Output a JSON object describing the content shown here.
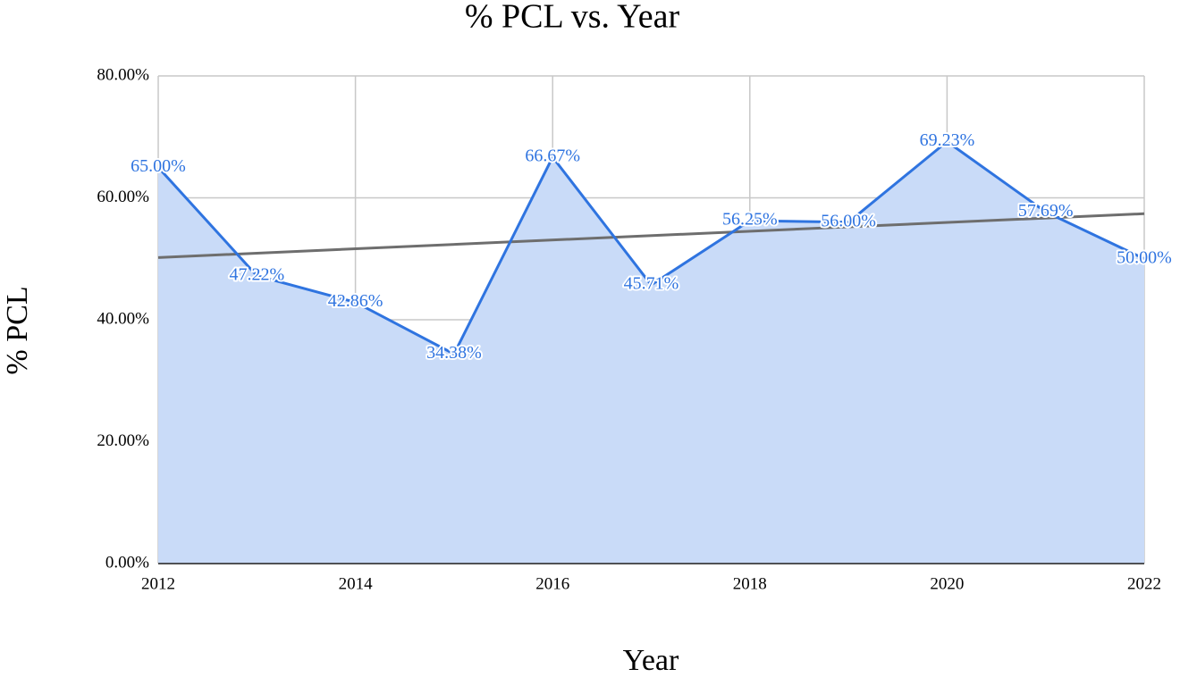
{
  "chart_data": {
    "type": "area",
    "title": "% PCL vs. Year",
    "x_label": "Year",
    "y_label": "% PCL",
    "x": [
      2012,
      2013,
      2014,
      2015,
      2016,
      2017,
      2018,
      2019,
      2020,
      2021,
      2022
    ],
    "values": [
      65.0,
      47.22,
      42.86,
      34.38,
      66.67,
      45.71,
      56.25,
      56.0,
      69.23,
      57.69,
      50.0
    ],
    "value_labels": [
      "65.00%",
      "47.22%",
      "42.86%",
      "34.38%",
      "66.67%",
      "45.71%",
      "56.25%",
      "56.00%",
      "69.23%",
      "57.69%",
      "50.00%"
    ],
    "color": "#2f74e0",
    "fill_color": "#c9dbf8",
    "trendline": {
      "x": [
        2012,
        2022
      ],
      "values": [
        50.2,
        57.4
      ],
      "color": "#6e6e6e"
    },
    "xlim": [
      2012,
      2022
    ],
    "xticks": [
      2012,
      2014,
      2016,
      2018,
      2020,
      2022
    ],
    "ylim": [
      0,
      80
    ],
    "yticks": [
      {
        "value": 0,
        "label": "0.00%"
      },
      {
        "value": 20,
        "label": "20.00%"
      },
      {
        "value": 40,
        "label": "40.00%"
      },
      {
        "value": 60,
        "label": "60.00%"
      },
      {
        "value": 80,
        "label": "80.00%"
      }
    ],
    "grid": true
  }
}
